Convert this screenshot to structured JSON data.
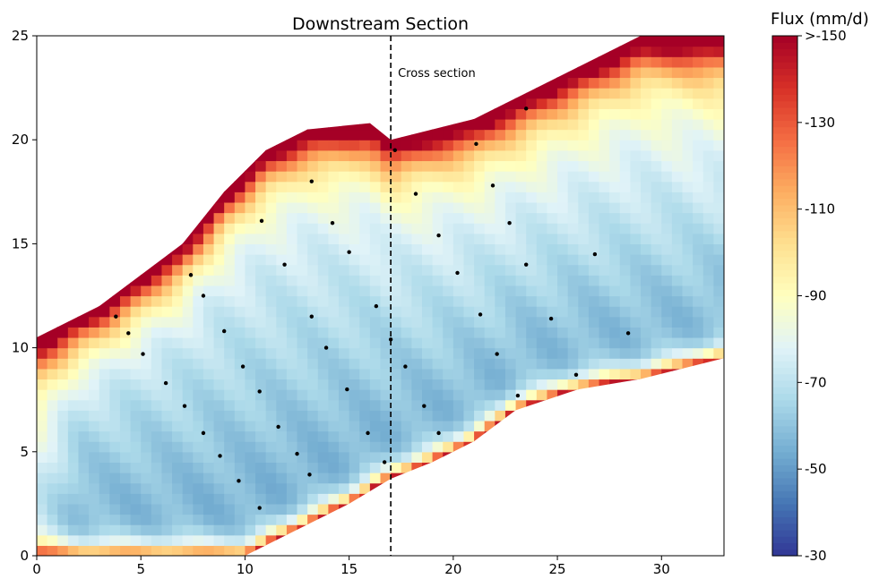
{
  "chart_data": {
    "type": "heatmap",
    "title": "Downstream Section",
    "xlabel": "",
    "ylabel": "",
    "xlim": [
      0,
      33
    ],
    "ylim": [
      0,
      25
    ],
    "x_ticks": [
      0,
      5,
      10,
      15,
      20,
      25,
      30
    ],
    "y_ticks": [
      0,
      5,
      10,
      15,
      20,
      25
    ],
    "grid": false,
    "cross_section": {
      "x": 17,
      "label": "Cross section"
    },
    "colorbar": {
      "title": "Flux (mm/d)",
      "range": [
        -30,
        -150
      ],
      "ticks": [
        "-30",
        "-50",
        "-70",
        "-90",
        "-110",
        "-130",
        ">-150"
      ],
      "colormap": "RdYlBu",
      "colors_low_to_high_magnitude": [
        "#313695",
        "#4575b4",
        "#74add1",
        "#abd9e9",
        "#e0f3f8",
        "#ffffbf",
        "#fee090",
        "#fdae61",
        "#f46d43",
        "#d73027",
        "#a50026"
      ]
    },
    "domain_boundary": {
      "top": [
        [
          0,
          10.5
        ],
        [
          3,
          12
        ],
        [
          5,
          13.5
        ],
        [
          7,
          15
        ],
        [
          9,
          17.5
        ],
        [
          11,
          19.5
        ],
        [
          13,
          20.5
        ],
        [
          16,
          20.8
        ],
        [
          17,
          20
        ],
        [
          19,
          20.5
        ],
        [
          21,
          21
        ],
        [
          24,
          22.5
        ],
        [
          27,
          24
        ],
        [
          29,
          25
        ],
        [
          33,
          25
        ]
      ],
      "bottom": [
        [
          0,
          0
        ],
        [
          10,
          0
        ],
        [
          12,
          1
        ],
        [
          15,
          2.5
        ],
        [
          17,
          3.7
        ],
        [
          19,
          4.5
        ],
        [
          21,
          5.5
        ],
        [
          23,
          7
        ],
        [
          26,
          8
        ],
        [
          29,
          8.5
        ],
        [
          33,
          9.5
        ]
      ]
    },
    "measurement_points": [
      [
        3.8,
        11.5
      ],
      [
        4.4,
        10.7
      ],
      [
        5.1,
        9.7
      ],
      [
        6.2,
        8.3
      ],
      [
        7.1,
        7.2
      ],
      [
        8.0,
        5.9
      ],
      [
        8.8,
        4.8
      ],
      [
        9.7,
        3.6
      ],
      [
        10.7,
        2.3
      ],
      [
        7.4,
        13.5
      ],
      [
        8.0,
        12.5
      ],
      [
        9.0,
        10.8
      ],
      [
        9.9,
        9.1
      ],
      [
        10.7,
        7.9
      ],
      [
        11.6,
        6.2
      ],
      [
        12.5,
        4.9
      ],
      [
        13.1,
        3.9
      ],
      [
        10.8,
        16.1
      ],
      [
        11.9,
        14.0
      ],
      [
        13.2,
        11.5
      ],
      [
        13.9,
        10.0
      ],
      [
        14.9,
        8.0
      ],
      [
        15.9,
        5.9
      ],
      [
        16.7,
        4.5
      ],
      [
        13.2,
        18.0
      ],
      [
        14.2,
        16.0
      ],
      [
        15.0,
        14.6
      ],
      [
        16.3,
        12.0
      ],
      [
        17.0,
        10.4
      ],
      [
        17.7,
        9.1
      ],
      [
        18.6,
        7.2
      ],
      [
        19.3,
        5.9
      ],
      [
        17.2,
        19.5
      ],
      [
        18.2,
        17.4
      ],
      [
        19.3,
        15.4
      ],
      [
        20.2,
        13.6
      ],
      [
        21.3,
        11.6
      ],
      [
        22.1,
        9.7
      ],
      [
        23.1,
        7.7
      ],
      [
        21.1,
        19.8
      ],
      [
        21.9,
        17.8
      ],
      [
        22.7,
        16.0
      ],
      [
        23.5,
        14.0
      ],
      [
        24.7,
        11.4
      ],
      [
        25.9,
        8.7
      ],
      [
        23.5,
        21.5
      ],
      [
        26.8,
        14.5
      ],
      [
        28.4,
        10.7
      ]
    ]
  }
}
